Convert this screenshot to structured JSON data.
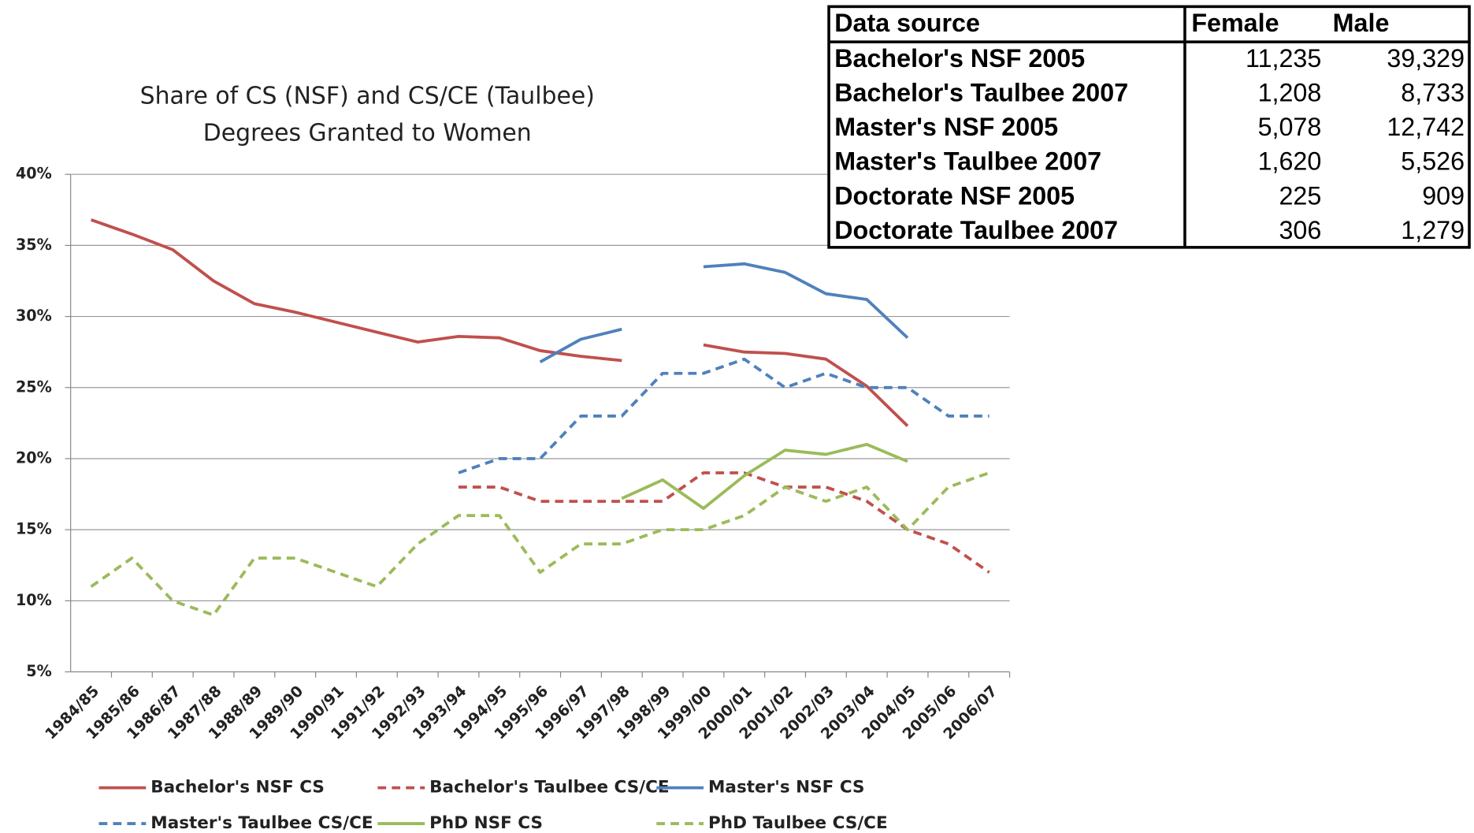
{
  "chart_data": {
    "type": "line",
    "title": [
      "Share of CS (NSF) and CS/CE (Taulbee)",
      "Degrees Granted to Women"
    ],
    "categories": [
      "1984/85",
      "1985/86",
      "1986/87",
      "1987/88",
      "1988/89",
      "1989/90",
      "1990/91",
      "1991/92",
      "1992/93",
      "1993/94",
      "1994/95",
      "1995/96",
      "1996/97",
      "1997/98",
      "1998/99",
      "1999/00",
      "2000/01",
      "2001/02",
      "2002/03",
      "2003/04",
      "2004/05",
      "2005/06",
      "2006/07"
    ],
    "ylim": [
      5,
      40
    ],
    "yticks": [
      {
        "value": 5,
        "label": "5%"
      },
      {
        "value": 10,
        "label": "10%"
      },
      {
        "value": 15,
        "label": "15%"
      },
      {
        "value": 20,
        "label": "20%"
      },
      {
        "value": 25,
        "label": "25%"
      },
      {
        "value": 30,
        "label": "30%"
      },
      {
        "value": 35,
        "label": "35%"
      },
      {
        "value": 40,
        "label": "40%"
      }
    ],
    "grid": true,
    "series": [
      {
        "name": "Bachelor's NSF CS",
        "color": "#c0504d",
        "dashed": false,
        "values": [
          36.8,
          35.8,
          34.7,
          32.5,
          30.9,
          30.3,
          29.6,
          28.9,
          28.2,
          28.6,
          28.5,
          27.6,
          27.2,
          26.9,
          null,
          28.0,
          27.5,
          27.4,
          27.0,
          25.1,
          22.3,
          null,
          null
        ]
      },
      {
        "name": "Bachelor's Taulbee CS/CE",
        "color": "#c0504d",
        "dashed": true,
        "values": [
          null,
          null,
          null,
          null,
          null,
          null,
          null,
          null,
          null,
          18,
          18,
          17,
          17,
          17,
          17,
          19,
          19,
          18,
          18,
          17,
          15,
          14,
          12
        ]
      },
      {
        "name": "Master's NSF CS",
        "color": "#4f81bd",
        "dashed": false,
        "values": [
          null,
          null,
          null,
          null,
          null,
          null,
          null,
          null,
          null,
          null,
          null,
          26.8,
          28.4,
          29.1,
          null,
          33.5,
          33.7,
          33.1,
          31.6,
          31.2,
          28.5,
          null,
          null
        ]
      },
      {
        "name": "Master's Taulbee CS/CE",
        "color": "#4f81bd",
        "dashed": true,
        "values": [
          null,
          null,
          null,
          null,
          null,
          null,
          null,
          null,
          null,
          19,
          20,
          20,
          23,
          23,
          26,
          26,
          27,
          25,
          26,
          25,
          25,
          23,
          23
        ]
      },
      {
        "name": "PhD NSF CS",
        "color": "#9bbb59",
        "dashed": false,
        "values": [
          null,
          null,
          null,
          null,
          null,
          null,
          null,
          null,
          null,
          null,
          null,
          null,
          null,
          17.2,
          18.5,
          16.5,
          18.8,
          20.6,
          20.3,
          21.0,
          19.8,
          null,
          null
        ]
      },
      {
        "name": "PhD Taulbee CS/CE",
        "color": "#9bbb59",
        "dashed": true,
        "values": [
          11,
          13,
          10,
          9,
          13,
          13,
          12,
          11,
          14,
          16,
          16,
          12,
          14,
          14,
          15,
          15,
          16,
          18,
          17,
          18,
          15,
          18,
          19
        ]
      }
    ]
  },
  "table": {
    "header": [
      "Data source",
      "Female",
      "Male"
    ],
    "rows": [
      [
        "Bachelor's NSF 2005",
        "11,235",
        "39,329"
      ],
      [
        "Bachelor's Taulbee 2007",
        "1,208",
        "8,733"
      ],
      [
        "Master's NSF 2005",
        "5,078",
        "12,742"
      ],
      [
        "Master's Taulbee 2007",
        "1,620",
        "5,526"
      ],
      [
        "Doctorate NSF 2005",
        "225",
        "909"
      ],
      [
        "Doctorate Taulbee 2007",
        "306",
        "1,279"
      ]
    ]
  }
}
